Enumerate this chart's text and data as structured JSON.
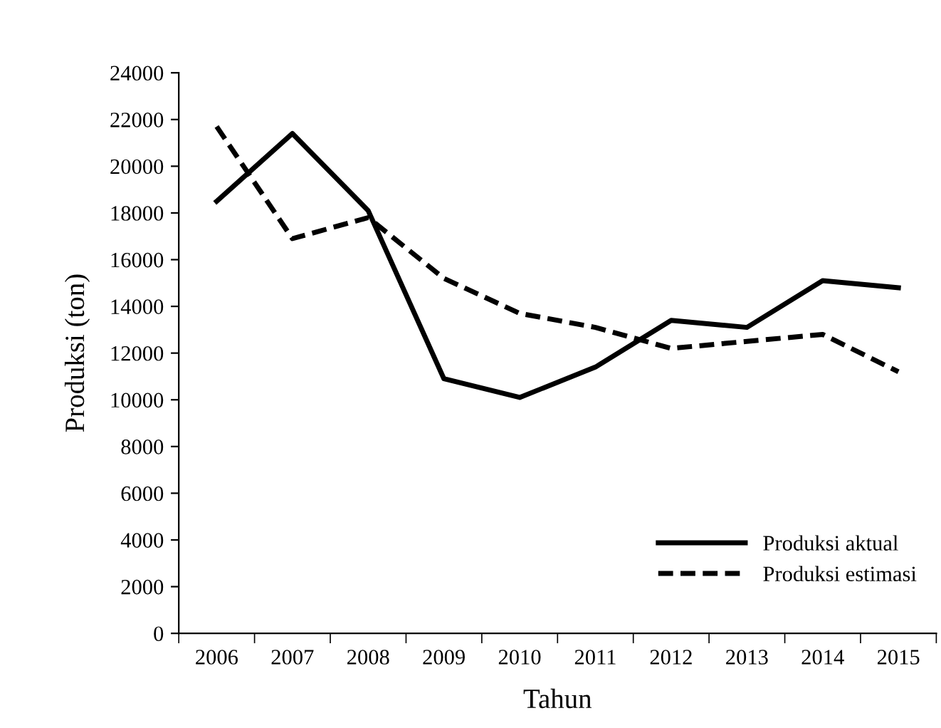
{
  "chart_data": {
    "type": "line",
    "xlabel": "Tahun",
    "ylabel": "Produksi (ton)",
    "categories": [
      "2006",
      "2007",
      "2008",
      "2009",
      "2010",
      "2011",
      "2012",
      "2013",
      "2014",
      "2015"
    ],
    "series": [
      {
        "name": "Produksi aktual",
        "color": "#000000",
        "line_style": "solid",
        "values": [
          18500,
          21400,
          18100,
          10900,
          10100,
          11400,
          13400,
          13100,
          15100,
          14800
        ]
      },
      {
        "name": "Produksi estimasi",
        "color": "#000000",
        "line_style": "dashed",
        "values": [
          21700,
          16900,
          17800,
          15200,
          13700,
          13100,
          12200,
          12500,
          12800,
          11200
        ]
      }
    ],
    "ylim": [
      0,
      24000
    ],
    "yticks": [
      0,
      2000,
      4000,
      6000,
      8000,
      10000,
      12000,
      14000,
      16000,
      18000,
      20000,
      22000,
      24000
    ],
    "grid": false,
    "legend": "bottom right",
    "marker": "none"
  }
}
